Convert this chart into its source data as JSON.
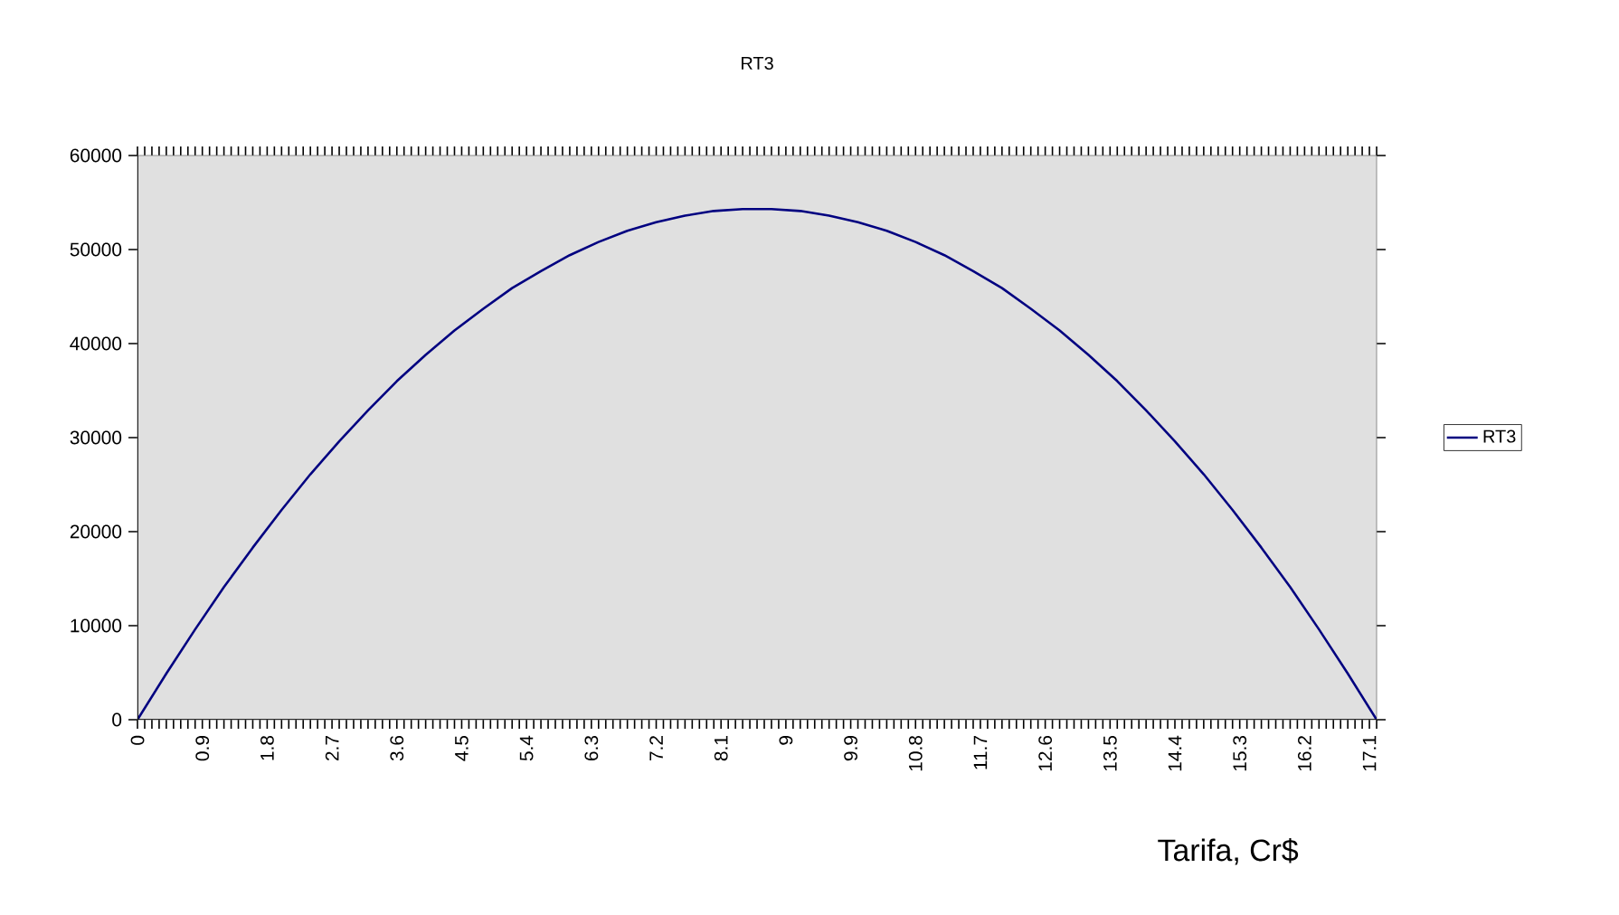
{
  "chart_data": {
    "type": "line",
    "title": "RT3",
    "xlabel": "Tarifa, Cr$",
    "legend": "right",
    "x": [
      0,
      0.4,
      0.8,
      1.2,
      1.6,
      2.0,
      2.4,
      2.8,
      3.2,
      3.6,
      4.0,
      4.4,
      4.8,
      5.2,
      5.6,
      6.0,
      6.4,
      6.8,
      7.2,
      7.6,
      8.0,
      8.4,
      8.8,
      9.2,
      9.6,
      10.0,
      10.4,
      10.8,
      11.2,
      11.6,
      12.0,
      12.4,
      12.8,
      13.2,
      13.6,
      14.0,
      14.4,
      14.8,
      15.2,
      15.6,
      16.0,
      16.4,
      16.8,
      17.2
    ],
    "series": [
      {
        "name": "RT3",
        "color": "#000080",
        "values": [
          0,
          4900,
          9600,
          14100,
          18300,
          22300,
          26100,
          29600,
          32900,
          36000,
          38800,
          41400,
          43700,
          45900,
          47700,
          49400,
          50800,
          52000,
          52900,
          53600,
          54100,
          54300,
          54300,
          54100,
          53600,
          52900,
          52000,
          50800,
          49400,
          47700,
          45900,
          43700,
          41400,
          38800,
          36000,
          32900,
          29600,
          26100,
          22300,
          18300,
          14100,
          9600,
          4900,
          0
        ]
      }
    ],
    "xlim": [
      0,
      17.2
    ],
    "ylim": [
      0,
      60000
    ],
    "yticks": [
      0,
      10000,
      20000,
      30000,
      40000,
      50000,
      60000
    ],
    "xticks": [
      0,
      0.9,
      1.8,
      2.7,
      3.6,
      4.5,
      5.4,
      6.3,
      7.2,
      8.1,
      9,
      9.9,
      10.8,
      11.7,
      12.6,
      13.5,
      14.4,
      15.3,
      16.2,
      17.1,
      {
        "value": 0.1,
        "label": null
      },
      {
        "value": 0.2,
        "label": null
      },
      {
        "value": 0.3,
        "label": null
      },
      {
        "value": 0.4,
        "label": null
      },
      {
        "value": 0.5,
        "label": null
      },
      {
        "value": 0.6,
        "label": null
      },
      {
        "value": 0.7,
        "label": null
      },
      {
        "value": 0.8,
        "label": null
      },
      {
        "value": 1.0,
        "label": null
      },
      {
        "value": 1.1,
        "label": null
      },
      {
        "value": 1.2,
        "label": null
      },
      {
        "value": 1.3,
        "label": null
      },
      {
        "value": 1.4,
        "label": null
      },
      {
        "value": 1.5,
        "label": null
      },
      {
        "value": 1.6,
        "label": null
      },
      {
        "value": 1.7,
        "label": null
      },
      {
        "value": 1.9,
        "label": null
      },
      {
        "value": 2.0,
        "label": null
      },
      {
        "value": 2.1,
        "label": null
      },
      {
        "value": 2.2,
        "label": null
      },
      {
        "value": 2.3,
        "label": null
      },
      {
        "value": 2.4,
        "label": null
      },
      {
        "value": 2.5,
        "label": null
      },
      {
        "value": 2.6,
        "label": null
      },
      {
        "value": 2.8,
        "label": null
      },
      {
        "value": 2.9,
        "label": null
      },
      {
        "value": 3.0,
        "label": null
      },
      {
        "value": 3.1,
        "label": null
      },
      {
        "value": 3.2,
        "label": null
      },
      {
        "value": 3.3,
        "label": null
      },
      {
        "value": 3.4,
        "label": null
      },
      {
        "value": 3.5,
        "label": null
      },
      {
        "value": 3.7,
        "label": null
      },
      {
        "value": 3.8,
        "label": null
      },
      {
        "value": 3.9,
        "label": null
      },
      {
        "value": 4.0,
        "label": null
      },
      {
        "value": 4.1,
        "label": null
      },
      {
        "value": 4.2,
        "label": null
      },
      {
        "value": 4.3,
        "label": null
      },
      {
        "value": 4.4,
        "label": null
      },
      {
        "value": 4.6,
        "label": null
      },
      {
        "value": 4.7,
        "label": null
      },
      {
        "value": 4.8,
        "label": null
      },
      {
        "value": 4.9,
        "label": null
      },
      {
        "value": 5.0,
        "label": null
      },
      {
        "value": 5.1,
        "label": null
      },
      {
        "value": 5.2,
        "label": null
      },
      {
        "value": 5.3,
        "label": null
      },
      {
        "value": 5.5,
        "label": null
      },
      {
        "value": 5.6,
        "label": null
      },
      {
        "value": 5.7,
        "label": null
      },
      {
        "value": 5.8,
        "label": null
      },
      {
        "value": 5.9,
        "label": null
      },
      {
        "value": 6.0,
        "label": null
      },
      {
        "value": 6.1,
        "label": null
      },
      {
        "value": 6.2,
        "label": null
      },
      {
        "value": 6.4,
        "label": null
      },
      {
        "value": 6.5,
        "label": null
      },
      {
        "value": 6.6,
        "label": null
      },
      {
        "value": 6.7,
        "label": null
      },
      {
        "value": 6.8,
        "label": null
      },
      {
        "value": 6.9,
        "label": null
      },
      {
        "value": 7.0,
        "label": null
      },
      {
        "value": 7.1,
        "label": null
      },
      {
        "value": 7.3,
        "label": null
      },
      {
        "value": 7.4,
        "label": null
      },
      {
        "value": 7.5,
        "label": null
      },
      {
        "value": 7.6,
        "label": null
      },
      {
        "value": 7.7,
        "label": null
      },
      {
        "value": 7.8,
        "label": null
      },
      {
        "value": 7.9,
        "label": null
      },
      {
        "value": 8.0,
        "label": null
      },
      {
        "value": 8.2,
        "label": null
      },
      {
        "value": 8.3,
        "label": null
      },
      {
        "value": 8.4,
        "label": null
      },
      {
        "value": 8.5,
        "label": null
      },
      {
        "value": 8.6,
        "label": null
      },
      {
        "value": 8.7,
        "label": null
      },
      {
        "value": 8.8,
        "label": null
      },
      {
        "value": 8.9,
        "label": null
      },
      {
        "value": 9.1,
        "label": null
      },
      {
        "value": 9.2,
        "label": null
      },
      {
        "value": 9.3,
        "label": null
      },
      {
        "value": 9.4,
        "label": null
      },
      {
        "value": 9.5,
        "label": null
      },
      {
        "value": 9.6,
        "label": null
      },
      {
        "value": 9.7,
        "label": null
      },
      {
        "value": 9.8,
        "label": null
      },
      {
        "value": 10.0,
        "label": null
      },
      {
        "value": 10.1,
        "label": null
      },
      {
        "value": 10.2,
        "label": null
      },
      {
        "value": 10.3,
        "label": null
      },
      {
        "value": 10.4,
        "label": null
      },
      {
        "value": 10.5,
        "label": null
      },
      {
        "value": 10.6,
        "label": null
      },
      {
        "value": 10.7,
        "label": null
      },
      {
        "value": 10.9,
        "label": null
      },
      {
        "value": 11.0,
        "label": null
      },
      {
        "value": 11.1,
        "label": null
      },
      {
        "value": 11.2,
        "label": null
      },
      {
        "value": 11.3,
        "label": null
      },
      {
        "value": 11.4,
        "label": null
      },
      {
        "value": 11.5,
        "label": null
      },
      {
        "value": 11.6,
        "label": null
      },
      {
        "value": 11.8,
        "label": null
      },
      {
        "value": 11.9,
        "label": null
      },
      {
        "value": 12.0,
        "label": null
      },
      {
        "value": 12.1,
        "label": null
      },
      {
        "value": 12.2,
        "label": null
      },
      {
        "value": 12.3,
        "label": null
      },
      {
        "value": 12.4,
        "label": null
      },
      {
        "value": 12.5,
        "label": null
      },
      {
        "value": 12.7,
        "label": null
      },
      {
        "value": 12.8,
        "label": null
      },
      {
        "value": 12.9,
        "label": null
      },
      {
        "value": 13.0,
        "label": null
      },
      {
        "value": 13.1,
        "label": null
      },
      {
        "value": 13.2,
        "label": null
      },
      {
        "value": 13.3,
        "label": null
      },
      {
        "value": 13.4,
        "label": null
      },
      {
        "value": 13.6,
        "label": null
      },
      {
        "value": 13.7,
        "label": null
      },
      {
        "value": 13.8,
        "label": null
      },
      {
        "value": 13.9,
        "label": null
      },
      {
        "value": 14.0,
        "label": null
      },
      {
        "value": 14.1,
        "label": null
      },
      {
        "value": 14.2,
        "label": null
      },
      {
        "value": 14.3,
        "label": null
      },
      {
        "value": 14.5,
        "label": null
      },
      {
        "value": 14.6,
        "label": null
      },
      {
        "value": 14.7,
        "label": null
      },
      {
        "value": 14.8,
        "label": null
      },
      {
        "value": 14.9,
        "label": null
      },
      {
        "value": 15.0,
        "label": null
      },
      {
        "value": 15.1,
        "label": null
      },
      {
        "value": 15.2,
        "label": null
      },
      {
        "value": 15.4,
        "label": null
      },
      {
        "value": 15.5,
        "label": null
      },
      {
        "value": 15.6,
        "label": null
      },
      {
        "value": 15.7,
        "label": null
      },
      {
        "value": 15.8,
        "label": null
      },
      {
        "value": 15.9,
        "label": null
      },
      {
        "value": 16.0,
        "label": null
      },
      {
        "value": 16.1,
        "label": null
      },
      {
        "value": 16.3,
        "label": null
      },
      {
        "value": 16.4,
        "label": null
      },
      {
        "value": 16.5,
        "label": null
      },
      {
        "value": 16.6,
        "label": null
      },
      {
        "value": 16.7,
        "label": null
      },
      {
        "value": 16.8,
        "label": null
      },
      {
        "value": 16.9,
        "label": null
      },
      {
        "value": 17.0,
        "label": null
      },
      {
        "value": 17.2,
        "label": null
      }
    ]
  }
}
